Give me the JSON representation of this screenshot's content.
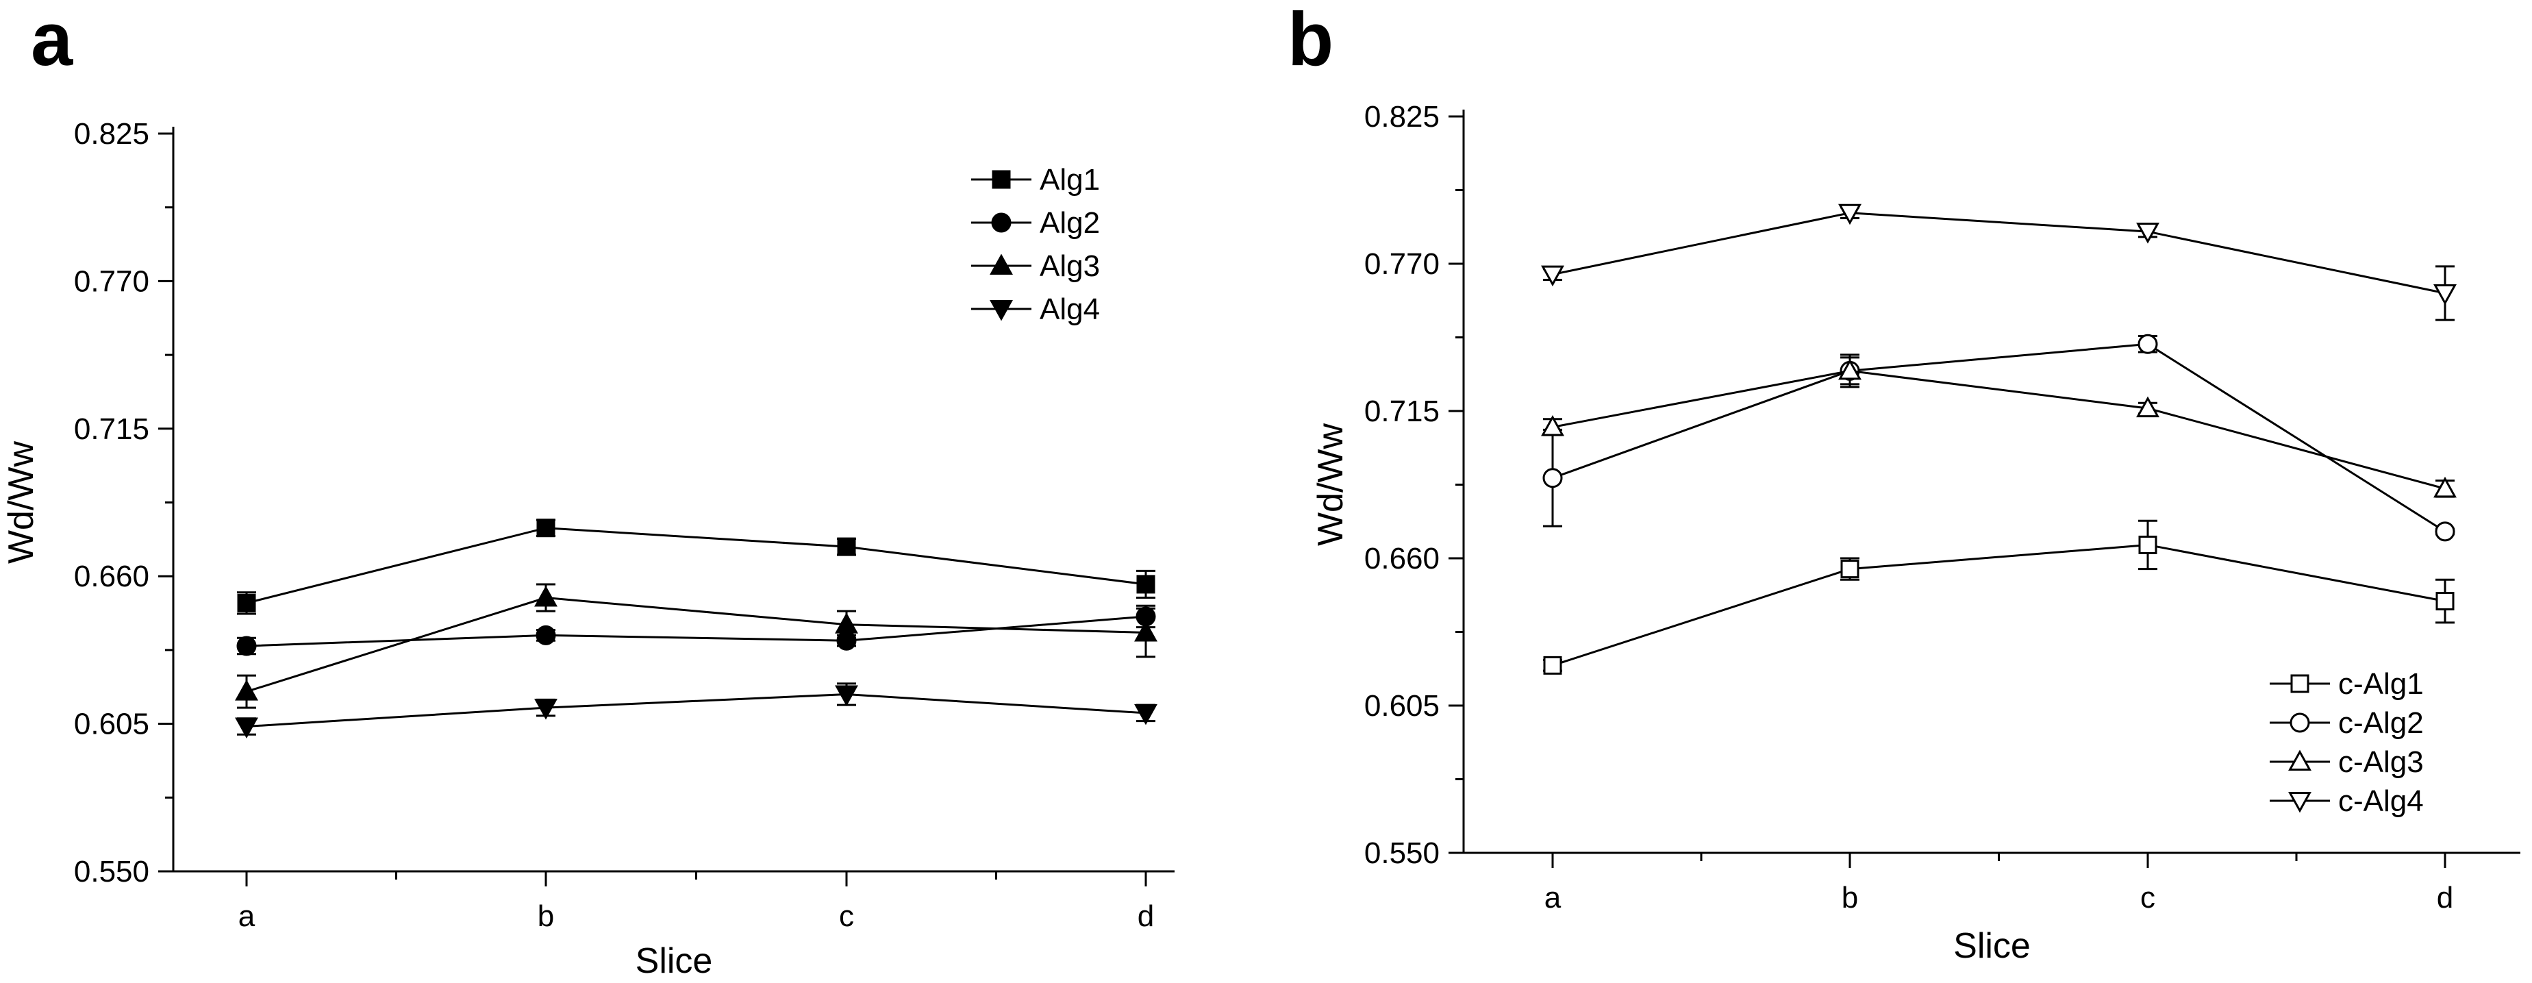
{
  "chart_data": [
    {
      "type": "line",
      "panel_label": "a",
      "xlabel": "Slice",
      "ylabel": "Wd/Ww",
      "categories": [
        "a",
        "b",
        "c",
        "d"
      ],
      "ylim": [
        0.55,
        0.825
      ],
      "yticks": [
        "0.550",
        "0.605",
        "0.660",
        "0.715",
        "0.770",
        "0.825"
      ],
      "marker_fill": "filled",
      "legend_position": "top-right",
      "series": [
        {
          "name": "Alg1",
          "marker": "square",
          "values": [
            0.65,
            0.678,
            0.671,
            0.657
          ],
          "errors": [
            0.004,
            0.003,
            0.003,
            0.005
          ]
        },
        {
          "name": "Alg2",
          "marker": "circle",
          "values": [
            0.634,
            0.638,
            0.636,
            0.645
          ],
          "errors": [
            0.003,
            0.002,
            0.002,
            0.004
          ]
        },
        {
          "name": "Alg3",
          "marker": "triangle-up",
          "values": [
            0.617,
            0.652,
            0.642,
            0.639
          ],
          "errors": [
            0.006,
            0.005,
            0.005,
            0.009
          ]
        },
        {
          "name": "Alg4",
          "marker": "triangle-down",
          "values": [
            0.604,
            0.611,
            0.616,
            0.609
          ],
          "errors": [
            0.003,
            0.003,
            0.004,
            0.003
          ]
        }
      ]
    },
    {
      "type": "line",
      "panel_label": "b",
      "xlabel": "Slice",
      "ylabel": "Wd/Ww",
      "categories": [
        "a",
        "b",
        "c",
        "d"
      ],
      "ylim": [
        0.55,
        0.825
      ],
      "yticks": [
        "0.550",
        "0.605",
        "0.660",
        "0.715",
        "0.770",
        "0.825"
      ],
      "marker_fill": "hollow",
      "legend_position": "bottom-right",
      "series": [
        {
          "name": "c-Alg1",
          "marker": "square",
          "values": [
            0.62,
            0.656,
            0.665,
            0.644
          ],
          "errors": [
            0.002,
            0.004,
            0.009,
            0.008
          ]
        },
        {
          "name": "c-Alg2",
          "marker": "circle",
          "values": [
            0.69,
            0.73,
            0.74,
            0.67
          ],
          "errors": [
            0.018,
            0.005,
            0.003,
            0.001
          ]
        },
        {
          "name": "c-Alg3",
          "marker": "triangle-up",
          "values": [
            0.709,
            0.73,
            0.716,
            0.686
          ],
          "errors": [
            0.003,
            0.006,
            0.002,
            0.003
          ]
        },
        {
          "name": "c-Alg4",
          "marker": "triangle-down",
          "values": [
            0.766,
            0.789,
            0.782,
            0.759
          ],
          "errors": [
            0.002,
            0.002,
            0.002,
            0.01
          ]
        }
      ]
    }
  ]
}
